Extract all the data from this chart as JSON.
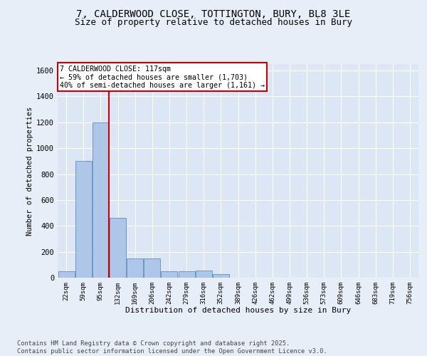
{
  "title_line1": "7, CALDERWOOD CLOSE, TOTTINGTON, BURY, BL8 3LE",
  "title_line2": "Size of property relative to detached houses in Bury",
  "xlabel": "Distribution of detached houses by size in Bury",
  "ylabel": "Number of detached properties",
  "categories": [
    "22sqm",
    "59sqm",
    "95sqm",
    "132sqm",
    "169sqm",
    "206sqm",
    "242sqm",
    "279sqm",
    "316sqm",
    "352sqm",
    "389sqm",
    "426sqm",
    "462sqm",
    "499sqm",
    "536sqm",
    "573sqm",
    "609sqm",
    "646sqm",
    "683sqm",
    "719sqm",
    "756sqm"
  ],
  "values": [
    50,
    900,
    1200,
    460,
    150,
    150,
    50,
    50,
    55,
    30,
    0,
    0,
    0,
    0,
    0,
    0,
    0,
    0,
    0,
    0,
    0
  ],
  "bar_color": "#aec6e8",
  "bar_edge_color": "#5a8fc0",
  "vline_color": "#cc0000",
  "vline_x": 2.5,
  "annotation_text": "7 CALDERWOOD CLOSE: 117sqm\n← 59% of detached houses are smaller (1,703)\n40% of semi-detached houses are larger (1,161) →",
  "annotation_box_edge_color": "#cc0000",
  "ylim": [
    0,
    1650
  ],
  "yticks": [
    0,
    200,
    400,
    600,
    800,
    1000,
    1200,
    1400,
    1600
  ],
  "footnote": "Contains HM Land Registry data © Crown copyright and database right 2025.\nContains public sector information licensed under the Open Government Licence v3.0.",
  "background_color": "#e8eef7",
  "plot_background": "#dce6f5"
}
